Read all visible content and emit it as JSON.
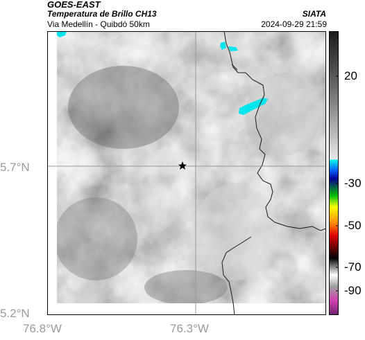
{
  "header": {
    "satellite": "GOES-EAST",
    "product": "Temperatura de Brillo CH13",
    "route": "Via Medellín - Quibdó 50km",
    "org": "SIATA",
    "datetime": "2024-09-29 21:59"
  },
  "axes": {
    "lat_labels": [
      "5.7°N",
      "5.2°N"
    ],
    "lon_labels": [
      "76.8°W",
      "76.3°W"
    ]
  },
  "colorbar": {
    "ticks": [
      "20",
      "-30",
      "-50",
      "-70",
      "-90"
    ]
  },
  "colors": {
    "cloud_cyan": "#00e5ee",
    "marker": "#000000",
    "grid": "#999999"
  }
}
